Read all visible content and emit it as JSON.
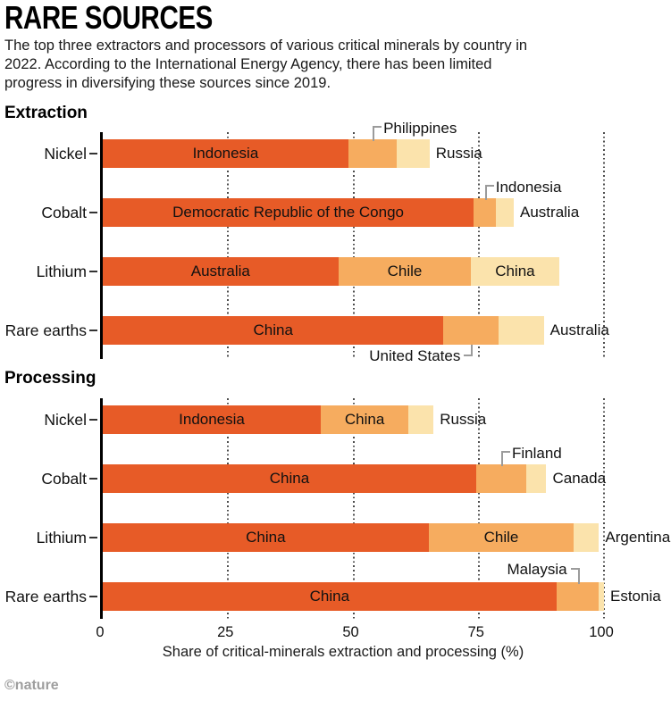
{
  "header": {
    "title": "RARE SOURCES",
    "subtitle": "The top three extractors and processors of various critical minerals by country in 2022. According to the International Energy Agency, there has been limited progress in diversifying these sources since 2019."
  },
  "colors": {
    "ranks": [
      "#E75B27",
      "#F6AC5F",
      "#FBE3AC"
    ],
    "axis_line": "#000000",
    "gridline": "#4D4D4D",
    "callout_line": "#9B9B9B",
    "credit_gray": "#9E9E9E"
  },
  "axis": {
    "ticks": [
      0,
      25,
      50,
      75,
      100
    ],
    "label": "Share of critical-minerals extraction and processing (%)",
    "max": 100
  },
  "footer": {
    "credit": "©nature"
  },
  "chart_data": [
    {
      "type": "bar",
      "stacked": true,
      "orientation": "horizontal",
      "section": "Extraction",
      "xlim": [
        0,
        100
      ],
      "x_ticks": [
        0,
        25,
        50,
        75,
        100
      ],
      "grid": true,
      "categories": [
        "Nickel",
        "Cobalt",
        "Lithium",
        "Rare earths"
      ],
      "rows": [
        {
          "category": "Nickel",
          "segments": [
            {
              "country": "Indonesia",
              "value": 49,
              "label": "inside"
            },
            {
              "country": "Philippines",
              "value": 9.7,
              "label": "callout_above_right"
            },
            {
              "country": "Russia",
              "value": 6.5,
              "label": "right"
            }
          ]
        },
        {
          "category": "Cobalt",
          "segments": [
            {
              "country": "Democratic Republic of the Congo",
              "value": 74,
              "label": "inside"
            },
            {
              "country": "Indonesia",
              "value": 4.5,
              "label": "callout_above_right"
            },
            {
              "country": "Australia",
              "value": 3.5,
              "label": "right"
            }
          ]
        },
        {
          "category": "Lithium",
          "segments": [
            {
              "country": "Australia",
              "value": 47,
              "label": "inside"
            },
            {
              "country": "Chile",
              "value": 26.5,
              "label": "inside"
            },
            {
              "country": "China",
              "value": 17.5,
              "label": "inside"
            }
          ]
        },
        {
          "category": "Rare earths",
          "segments": [
            {
              "country": "China",
              "value": 68,
              "label": "inside"
            },
            {
              "country": "United States",
              "value": 11,
              "label": "callout_below_left"
            },
            {
              "country": "Australia",
              "value": 9,
              "label": "right"
            }
          ]
        }
      ]
    },
    {
      "type": "bar",
      "stacked": true,
      "orientation": "horizontal",
      "section": "Processing",
      "xlim": [
        0,
        100
      ],
      "x_ticks": [
        0,
        25,
        50,
        75,
        100
      ],
      "grid": true,
      "categories": [
        "Nickel",
        "Cobalt",
        "Lithium",
        "Rare earths"
      ],
      "rows": [
        {
          "category": "Nickel",
          "segments": [
            {
              "country": "Indonesia",
              "value": 43.5,
              "label": "inside"
            },
            {
              "country": "China",
              "value": 17.5,
              "label": "inside"
            },
            {
              "country": "Russia",
              "value": 5,
              "label": "right"
            }
          ]
        },
        {
          "category": "Cobalt",
          "segments": [
            {
              "country": "China",
              "value": 74.5,
              "label": "inside"
            },
            {
              "country": "Finland",
              "value": 10,
              "label": "callout_above_right"
            },
            {
              "country": "Canada",
              "value": 4,
              "label": "right"
            }
          ]
        },
        {
          "category": "Lithium",
          "segments": [
            {
              "country": "China",
              "value": 65,
              "label": "inside"
            },
            {
              "country": "Chile",
              "value": 29,
              "label": "inside"
            },
            {
              "country": "Argentina",
              "value": 5,
              "label": "right"
            }
          ]
        },
        {
          "category": "Rare earths",
          "segments": [
            {
              "country": "China",
              "value": 90.5,
              "label": "inside"
            },
            {
              "country": "Malaysia",
              "value": 8.5,
              "label": "callout_above_left"
            },
            {
              "country": "Estonia",
              "value": 1,
              "label": "right"
            }
          ]
        }
      ]
    }
  ]
}
